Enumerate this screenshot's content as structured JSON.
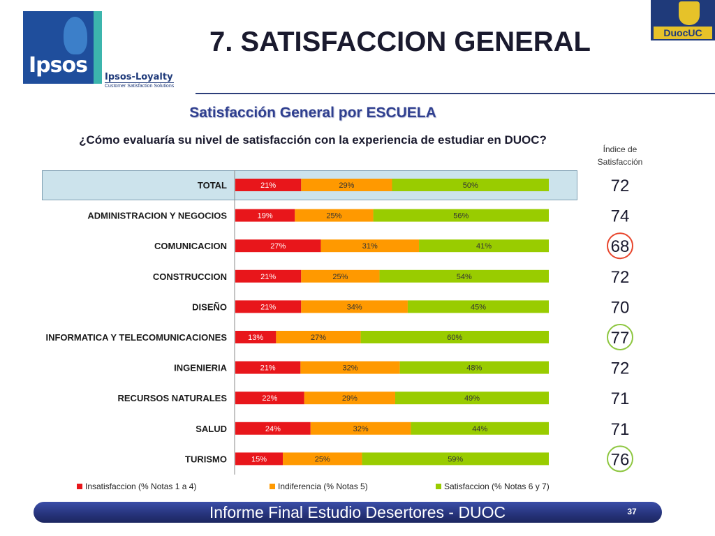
{
  "header": {
    "title": "7. SATISFACCION GENERAL",
    "ipsos_logo_text": "Ipsos",
    "loyalty_title": "Ipsos-Loyalty",
    "loyalty_subtitle": "Customer Satisfaction Solutions",
    "duoc_logo_text": "DuocUC"
  },
  "subtitle": "Satisfacción General por ESCUELA",
  "question": "¿Cómo evaluaría su nivel de satisfacción con la experiencia de estudiar en DUOC?",
  "index_header": [
    "Índice de",
    "Satisfacción"
  ],
  "chart_data": {
    "type": "bar",
    "orientation": "horizontal",
    "stacked": true,
    "categories": [
      "TOTAL",
      "ADMINISTRACION Y NEGOCIOS",
      "COMUNICACION",
      "CONSTRUCCION",
      "DISEÑO",
      "INFORMATICA Y TELECOMUNICACIONES",
      "INGENIERIA",
      "RECURSOS NATURALES",
      "SALUD",
      "TURISMO"
    ],
    "series": [
      {
        "name": "Insatisfaccion (% Notas 1 a 4)",
        "color": "#e8161b",
        "values": [
          21,
          19,
          27,
          21,
          21,
          13,
          21,
          22,
          24,
          15
        ],
        "labels": [
          "21%",
          "19%",
          "27%",
          "21%",
          "21%",
          "13%",
          "21%",
          "22%",
          "24%",
          "15%"
        ]
      },
      {
        "name": "Indiferencia (% Notas 5)",
        "color": "#ff9900",
        "values": [
          29,
          25,
          31,
          25,
          34,
          27,
          32,
          29,
          32,
          25
        ],
        "labels": [
          "29%",
          "25%",
          "31%",
          "25%",
          "34%",
          "27%",
          "32%",
          "29%",
          "32%",
          "25%"
        ]
      },
      {
        "name": "Satisfaccion (% Notas 6 y 7)",
        "color": "#99cc00",
        "values": [
          50,
          56,
          41,
          54,
          45,
          60,
          48,
          49,
          44,
          59
        ],
        "labels": [
          "50%",
          "56%",
          "41%",
          "54%",
          "45%",
          "60%",
          "48%",
          "49%",
          "44%",
          "59%"
        ]
      }
    ],
    "index_values": [
      72,
      74,
      68,
      72,
      70,
      77,
      72,
      71,
      71,
      76
    ],
    "index_labels": [
      "72",
      "74",
      "68",
      "72",
      "70",
      "77",
      "72",
      "71",
      "71",
      "76"
    ],
    "highlighted_indices": [
      {
        "row": 2,
        "color": "#e8452c"
      },
      {
        "row": 5,
        "color": "#8dc63f"
      },
      {
        "row": 9,
        "color": "#8dc63f"
      }
    ],
    "highlighted_row": 0,
    "legend_position": "bottom"
  },
  "footer": {
    "text": "Informe Final Estudio Desertores - DUOC",
    "page": "37"
  }
}
